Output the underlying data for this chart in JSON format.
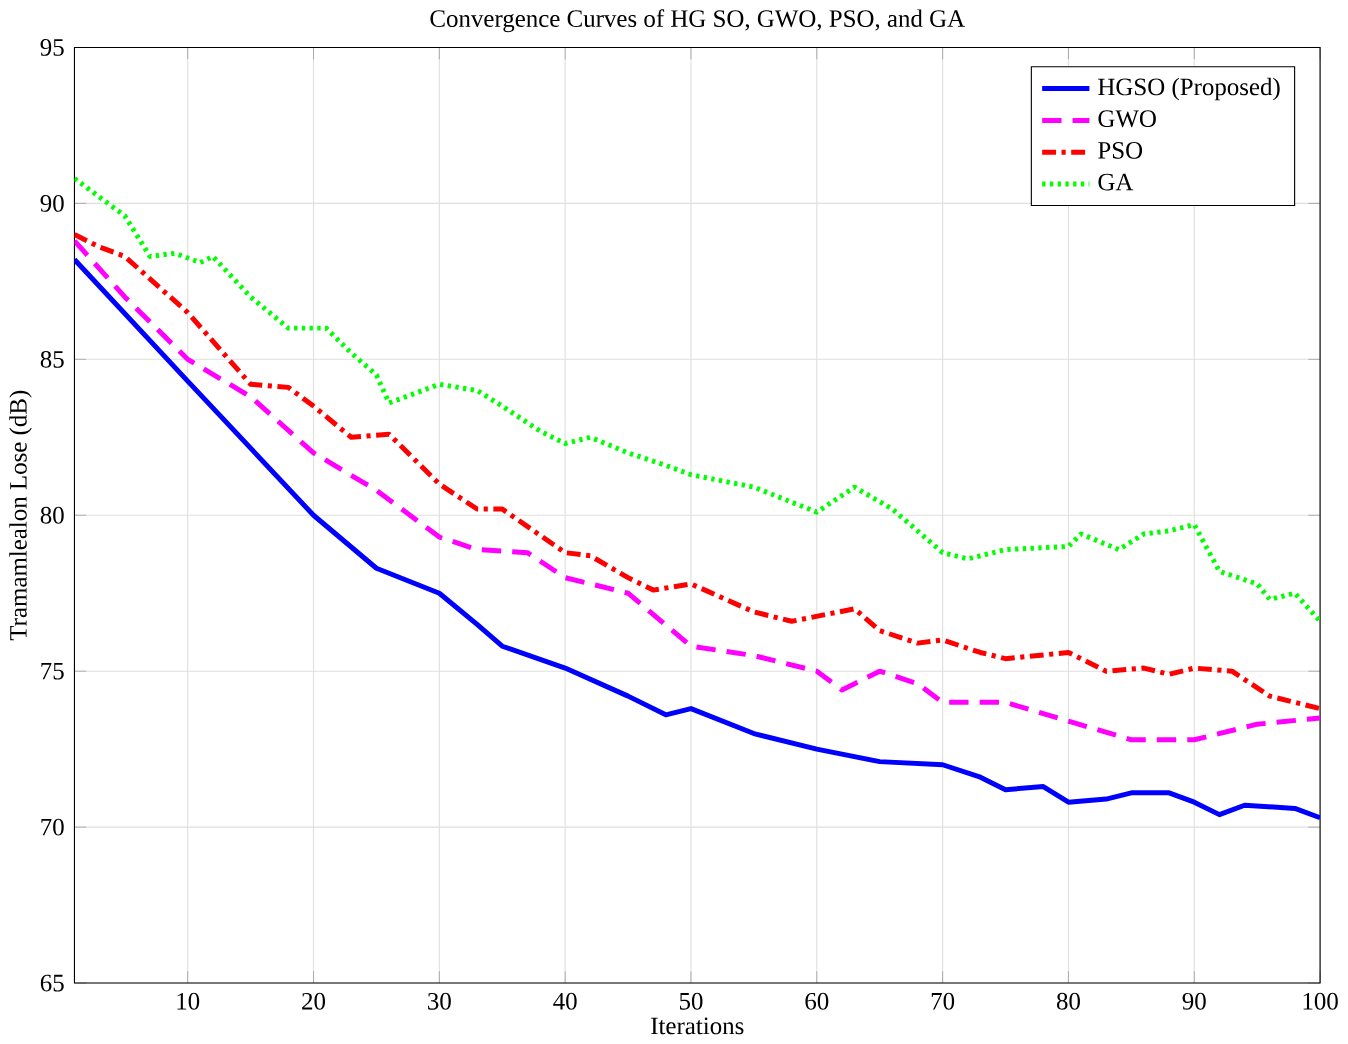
{
  "chart_data": {
    "type": "line",
    "title": "Convergence Curves of HG SO, GWO, PSO, and GA",
    "xlabel": "Iterations",
    "ylabel": "Tramamlealon Lose (dB)",
    "xlim": [
      1,
      100
    ],
    "ylim": [
      65,
      95
    ],
    "xticks": [
      10,
      20,
      30,
      40,
      50,
      60,
      70,
      80,
      90,
      100
    ],
    "yticks": [
      65,
      70,
      75,
      80,
      85,
      90,
      95
    ],
    "grid": true,
    "legend": "top right",
    "marker": "none",
    "series": [
      {
        "name": "HGSO (Proposed)",
        "color": "#0000ff",
        "line_style": "solid",
        "x": [
          1,
          10,
          20,
          25,
          30,
          33,
          35,
          40,
          45,
          48,
          50,
          55,
          60,
          65,
          70,
          73,
          75,
          78,
          80,
          83,
          85,
          88,
          90,
          92,
          94,
          98,
          100
        ],
        "values": [
          88.2,
          84.3,
          80.0,
          78.3,
          77.5,
          76.5,
          75.8,
          75.1,
          74.2,
          73.6,
          73.8,
          73.0,
          72.5,
          72.1,
          72.0,
          71.6,
          71.2,
          71.3,
          70.8,
          70.9,
          71.1,
          71.1,
          70.8,
          70.4,
          70.7,
          70.6,
          70.3
        ]
      },
      {
        "name": "GWO",
        "color": "#ff00ff",
        "line_style": "dashed",
        "x": [
          1,
          5,
          10,
          15,
          20,
          25,
          30,
          33,
          37,
          40,
          45,
          50,
          55,
          60,
          62,
          65,
          68,
          70,
          75,
          80,
          85,
          90,
          95,
          100
        ],
        "values": [
          88.8,
          87.0,
          85.0,
          83.8,
          82.0,
          80.8,
          79.3,
          78.9,
          78.8,
          78.0,
          77.5,
          75.8,
          75.5,
          75.0,
          74.4,
          75.0,
          74.6,
          74.0,
          74.0,
          73.4,
          72.8,
          72.8,
          73.3,
          73.5
        ]
      },
      {
        "name": "PSO",
        "color": "#ff0000",
        "line_style": "dashdotted",
        "x": [
          1,
          3,
          5,
          10,
          15,
          18,
          20,
          23,
          26,
          30,
          33,
          35,
          40,
          42,
          45,
          47,
          50,
          55,
          58,
          63,
          65,
          68,
          70,
          73,
          75,
          80,
          83,
          86,
          88,
          90,
          93,
          96,
          100
        ],
        "values": [
          89.0,
          88.6,
          88.3,
          86.5,
          84.2,
          84.1,
          83.5,
          82.5,
          82.6,
          81.0,
          80.2,
          80.2,
          78.8,
          78.7,
          78.0,
          77.6,
          77.8,
          76.9,
          76.6,
          77.0,
          76.3,
          75.9,
          76.0,
          75.6,
          75.4,
          75.6,
          75.0,
          75.1,
          74.9,
          75.1,
          75.0,
          74.2,
          73.8
        ]
      },
      {
        "name": "GA",
        "color": "#00ff00",
        "line_style": "dotted",
        "x": [
          1,
          5,
          7,
          9,
          11,
          12,
          15,
          18,
          21,
          23,
          25,
          26,
          30,
          33,
          35,
          38,
          40,
          42,
          45,
          48,
          50,
          55,
          60,
          63,
          66,
          70,
          72,
          75,
          80,
          81,
          84,
          86,
          88,
          90,
          92,
          95,
          96,
          98,
          100
        ],
        "values": [
          90.8,
          89.6,
          88.3,
          88.4,
          88.1,
          88.3,
          87.0,
          86.0,
          86.0,
          85.2,
          84.5,
          83.6,
          84.2,
          84.0,
          83.5,
          82.7,
          82.3,
          82.5,
          82.0,
          81.6,
          81.3,
          80.9,
          80.1,
          80.9,
          80.2,
          78.8,
          78.6,
          78.9,
          79.0,
          79.4,
          78.9,
          79.4,
          79.5,
          79.7,
          78.2,
          77.8,
          77.3,
          77.5,
          76.6
        ]
      }
    ]
  }
}
